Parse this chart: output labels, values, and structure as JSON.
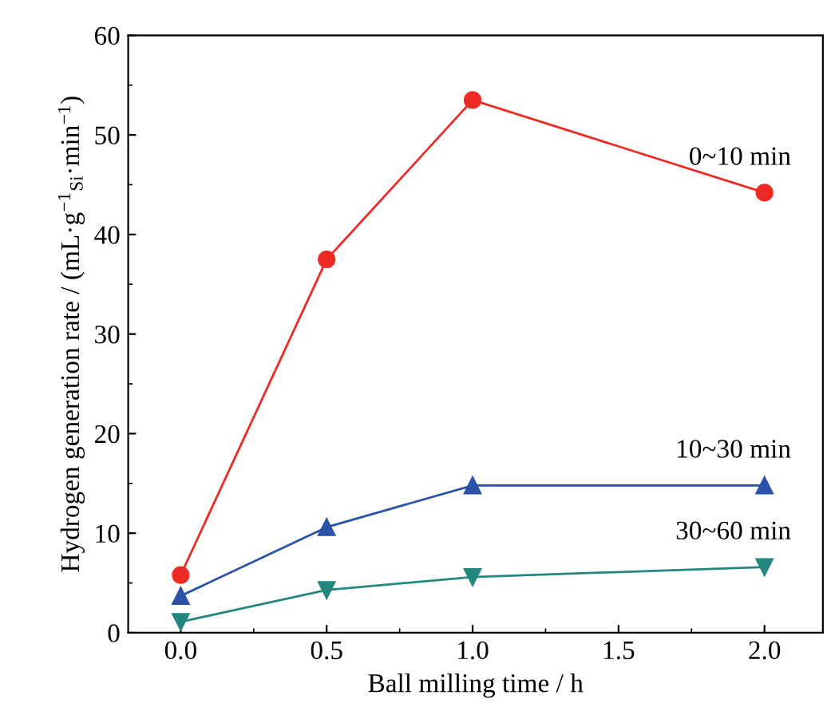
{
  "chart_data": {
    "type": "line",
    "xlabel": "Ball milling time / h",
    "ylabel": "Hydrogen generation rate / (mL·g$^{−1}$$_{Si}$·min$^{−1}$)",
    "x": [
      0.0,
      0.5,
      1.0,
      2.0
    ],
    "series": [
      {
        "name": "0~10 min",
        "color": "#ee2a24",
        "marker": "circle",
        "values": [
          5.8,
          37.5,
          53.5,
          44.2
        ]
      },
      {
        "name": "10~30 min",
        "color": "#2a52a8",
        "marker": "triangle",
        "values": [
          3.7,
          10.6,
          14.8,
          14.8
        ]
      },
      {
        "name": "30~60 min",
        "color": "#23877f",
        "marker": "triangle_down",
        "values": [
          1.1,
          4.3,
          5.6,
          6.6
        ]
      }
    ],
    "xlim": [
      -0.18,
      2.2
    ],
    "xticks": [
      {
        "value": 0.0,
        "label": "0.0"
      },
      {
        "value": 0.5,
        "label": "0.5"
      },
      {
        "value": 1.0,
        "label": "1.0"
      },
      {
        "value": 1.5,
        "label": "1.5"
      },
      {
        "value": 2.0,
        "label": "2.0"
      }
    ],
    "ylim": [
      0,
      60
    ],
    "yticks": [
      0,
      10,
      20,
      30,
      40,
      50,
      60
    ],
    "grid": false,
    "legend": false,
    "line_style": "solid"
  }
}
